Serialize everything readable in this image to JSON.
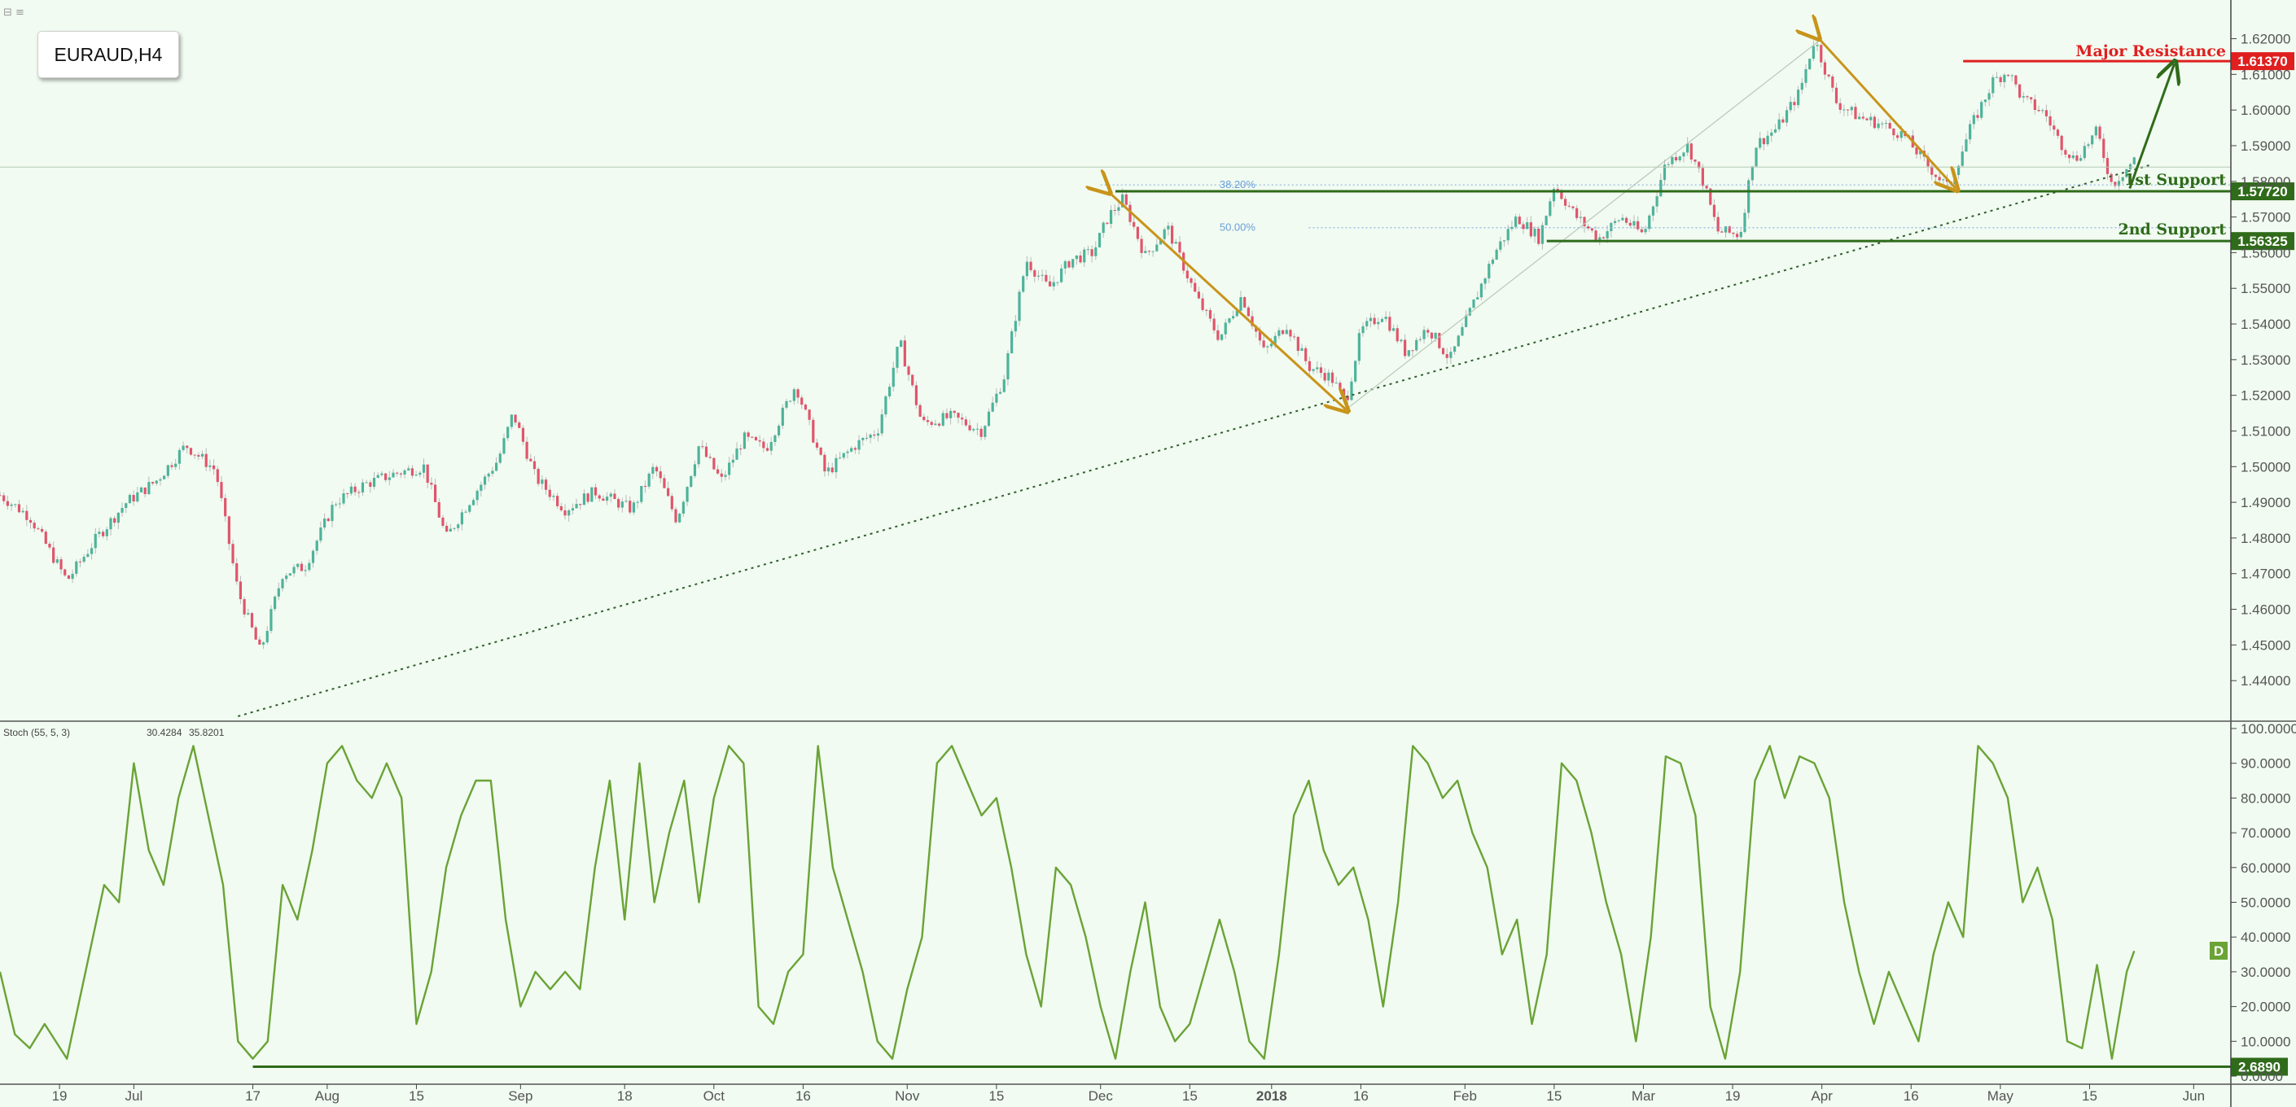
{
  "symbol": "EURAUD,H4",
  "top_icons": "⊟ ≡",
  "chart_data": {
    "type": "candlestick",
    "price_axis": {
      "range": [
        1.43,
        1.624
      ],
      "ticks": [
        "1.62000",
        "1.61000",
        "1.60000",
        "1.59000",
        "1.58000",
        "1.57000",
        "1.56000",
        "1.55000",
        "1.54000",
        "1.53000",
        "1.52000",
        "1.51000",
        "1.50000",
        "1.49000",
        "1.48000",
        "1.47000",
        "1.46000",
        "1.45000",
        "1.44000"
      ]
    },
    "time_axis": {
      "labels": [
        {
          "text": "19",
          "t": 0.04
        },
        {
          "text": "Jul",
          "t": 0.09
        },
        {
          "text": "17",
          "t": 0.17
        },
        {
          "text": "Aug",
          "t": 0.22
        },
        {
          "text": "15",
          "t": 0.28
        },
        {
          "text": "Sep",
          "t": 0.35
        },
        {
          "text": "18",
          "t": 0.42
        },
        {
          "text": "Oct",
          "t": 0.48
        },
        {
          "text": "16",
          "t": 0.54
        },
        {
          "text": "Nov",
          "t": 0.61
        },
        {
          "text": "15",
          "t": 0.67
        },
        {
          "text": "Dec",
          "t": 0.74
        },
        {
          "text": "15",
          "t": 0.8
        },
        {
          "text": "2018",
          "t": 0.855,
          "bold": true
        },
        {
          "text": "16",
          "t": 0.915
        },
        {
          "text": "Feb",
          "t": 0.985
        },
        {
          "text": "15",
          "t": 1.045
        },
        {
          "text": "Mar",
          "t": 1.105
        },
        {
          "text": "19",
          "t": 1.165
        },
        {
          "text": "Apr",
          "t": 1.225
        },
        {
          "text": "16",
          "t": 1.285
        },
        {
          "text": "May",
          "t": 1.345
        },
        {
          "text": "15",
          "t": 1.405
        },
        {
          "text": "Jun",
          "t": 1.475
        }
      ]
    },
    "price_path": [
      [
        0.0,
        1.492
      ],
      [
        0.02,
        1.486
      ],
      [
        0.045,
        1.468
      ],
      [
        0.065,
        1.48
      ],
      [
        0.085,
        1.49
      ],
      [
        0.105,
        1.496
      ],
      [
        0.125,
        1.506
      ],
      [
        0.145,
        1.499
      ],
      [
        0.16,
        1.465
      ],
      [
        0.175,
        1.448
      ],
      [
        0.19,
        1.47
      ],
      [
        0.205,
        1.472
      ],
      [
        0.225,
        1.49
      ],
      [
        0.245,
        1.495
      ],
      [
        0.265,
        1.498
      ],
      [
        0.285,
        1.5
      ],
      [
        0.3,
        1.48
      ],
      [
        0.315,
        1.49
      ],
      [
        0.335,
        1.502
      ],
      [
        0.345,
        1.515
      ],
      [
        0.36,
        1.497
      ],
      [
        0.38,
        1.488
      ],
      [
        0.4,
        1.493
      ],
      [
        0.425,
        1.488
      ],
      [
        0.44,
        1.5
      ],
      [
        0.455,
        1.485
      ],
      [
        0.47,
        1.506
      ],
      [
        0.485,
        1.496
      ],
      [
        0.5,
        1.508
      ],
      [
        0.515,
        1.505
      ],
      [
        0.535,
        1.523
      ],
      [
        0.555,
        1.498
      ],
      [
        0.575,
        1.506
      ],
      [
        0.59,
        1.51
      ],
      [
        0.605,
        1.535
      ],
      [
        0.62,
        1.512
      ],
      [
        0.64,
        1.514
      ],
      [
        0.66,
        1.51
      ],
      [
        0.675,
        1.525
      ],
      [
        0.69,
        1.558
      ],
      [
        0.705,
        1.55
      ],
      [
        0.72,
        1.558
      ],
      [
        0.735,
        1.56
      ],
      [
        0.745,
        1.57
      ],
      [
        0.755,
        1.575
      ],
      [
        0.77,
        1.559
      ],
      [
        0.785,
        1.567
      ],
      [
        0.805,
        1.547
      ],
      [
        0.82,
        1.536
      ],
      [
        0.835,
        1.548
      ],
      [
        0.85,
        1.532
      ],
      [
        0.865,
        1.54
      ],
      [
        0.88,
        1.528
      ],
      [
        0.895,
        1.525
      ],
      [
        0.905,
        1.518
      ],
      [
        0.915,
        1.538
      ],
      [
        0.93,
        1.543
      ],
      [
        0.945,
        1.532
      ],
      [
        0.96,
        1.539
      ],
      [
        0.975,
        1.53
      ],
      [
        0.99,
        1.545
      ],
      [
        1.005,
        1.56
      ],
      [
        1.02,
        1.57
      ],
      [
        1.035,
        1.564
      ],
      [
        1.045,
        1.579
      ],
      [
        1.06,
        1.57
      ],
      [
        1.075,
        1.564
      ],
      [
        1.09,
        1.57
      ],
      [
        1.105,
        1.565
      ],
      [
        1.12,
        1.585
      ],
      [
        1.135,
        1.59
      ],
      [
        1.145,
        1.58
      ],
      [
        1.155,
        1.566
      ],
      [
        1.17,
        1.565
      ],
      [
        1.18,
        1.59
      ],
      [
        1.195,
        1.595
      ],
      [
        1.21,
        1.605
      ],
      [
        1.22,
        1.62
      ],
      [
        1.235,
        1.602
      ],
      [
        1.25,
        1.598
      ],
      [
        1.265,
        1.596
      ],
      [
        1.28,
        1.593
      ],
      [
        1.295,
        1.585
      ],
      [
        1.31,
        1.578
      ],
      [
        1.325,
        1.595
      ],
      [
        1.34,
        1.608
      ],
      [
        1.35,
        1.611
      ],
      [
        1.36,
        1.603
      ],
      [
        1.375,
        1.599
      ],
      [
        1.385,
        1.591
      ],
      [
        1.395,
        1.586
      ],
      [
        1.41,
        1.594
      ],
      [
        1.42,
        1.579
      ],
      [
        1.435,
        1.586
      ]
    ],
    "stochastic": {
      "label": "Stoch (55, 5, 3)",
      "k_value": "30.4284",
      "d_value": "35.8201",
      "range": [
        0,
        100
      ],
      "ticks": [
        "100.0000",
        "90.0000",
        "80.0000",
        "70.0000",
        "60.0000",
        "50.0000",
        "40.0000",
        "30.0000",
        "20.0000",
        "10.0000",
        "0.0000"
      ],
      "level_line": 2.689,
      "level_label": "2.6890",
      "side_badge": "D",
      "values": [
        [
          0.0,
          30
        ],
        [
          0.01,
          12
        ],
        [
          0.02,
          8
        ],
        [
          0.03,
          15
        ],
        [
          0.045,
          5
        ],
        [
          0.06,
          35
        ],
        [
          0.07,
          55
        ],
        [
          0.08,
          50
        ],
        [
          0.09,
          90
        ],
        [
          0.1,
          65
        ],
        [
          0.11,
          55
        ],
        [
          0.12,
          80
        ],
        [
          0.13,
          95
        ],
        [
          0.14,
          75
        ],
        [
          0.15,
          55
        ],
        [
          0.16,
          10
        ],
        [
          0.17,
          5
        ],
        [
          0.18,
          10
        ],
        [
          0.19,
          55
        ],
        [
          0.2,
          45
        ],
        [
          0.21,
          65
        ],
        [
          0.22,
          90
        ],
        [
          0.23,
          95
        ],
        [
          0.24,
          85
        ],
        [
          0.25,
          80
        ],
        [
          0.26,
          90
        ],
        [
          0.27,
          80
        ],
        [
          0.28,
          15
        ],
        [
          0.29,
          30
        ],
        [
          0.3,
          60
        ],
        [
          0.31,
          75
        ],
        [
          0.32,
          85
        ],
        [
          0.33,
          85
        ],
        [
          0.34,
          45
        ],
        [
          0.35,
          20
        ],
        [
          0.36,
          30
        ],
        [
          0.37,
          25
        ],
        [
          0.38,
          30
        ],
        [
          0.39,
          25
        ],
        [
          0.4,
          60
        ],
        [
          0.41,
          85
        ],
        [
          0.42,
          45
        ],
        [
          0.43,
          90
        ],
        [
          0.44,
          50
        ],
        [
          0.45,
          70
        ],
        [
          0.46,
          85
        ],
        [
          0.47,
          50
        ],
        [
          0.48,
          80
        ],
        [
          0.49,
          95
        ],
        [
          0.5,
          90
        ],
        [
          0.51,
          20
        ],
        [
          0.52,
          15
        ],
        [
          0.53,
          30
        ],
        [
          0.54,
          35
        ],
        [
          0.55,
          95
        ],
        [
          0.56,
          60
        ],
        [
          0.57,
          45
        ],
        [
          0.58,
          30
        ],
        [
          0.59,
          10
        ],
        [
          0.6,
          5
        ],
        [
          0.61,
          25
        ],
        [
          0.62,
          40
        ],
        [
          0.63,
          90
        ],
        [
          0.64,
          95
        ],
        [
          0.65,
          85
        ],
        [
          0.66,
          75
        ],
        [
          0.67,
          80
        ],
        [
          0.68,
          60
        ],
        [
          0.69,
          35
        ],
        [
          0.7,
          20
        ],
        [
          0.71,
          60
        ],
        [
          0.72,
          55
        ],
        [
          0.73,
          40
        ],
        [
          0.74,
          20
        ],
        [
          0.75,
          5
        ],
        [
          0.76,
          30
        ],
        [
          0.77,
          50
        ],
        [
          0.78,
          20
        ],
        [
          0.79,
          10
        ],
        [
          0.8,
          15
        ],
        [
          0.81,
          30
        ],
        [
          0.82,
          45
        ],
        [
          0.83,
          30
        ],
        [
          0.84,
          10
        ],
        [
          0.85,
          5
        ],
        [
          0.86,
          35
        ],
        [
          0.87,
          75
        ],
        [
          0.88,
          85
        ],
        [
          0.89,
          65
        ],
        [
          0.9,
          55
        ],
        [
          0.91,
          60
        ],
        [
          0.92,
          45
        ],
        [
          0.93,
          20
        ],
        [
          0.94,
          50
        ],
        [
          0.95,
          95
        ],
        [
          0.96,
          90
        ],
        [
          0.97,
          80
        ],
        [
          0.98,
          85
        ],
        [
          0.99,
          70
        ],
        [
          1.0,
          60
        ],
        [
          1.01,
          35
        ],
        [
          1.02,
          45
        ],
        [
          1.03,
          15
        ],
        [
          1.04,
          35
        ],
        [
          1.05,
          90
        ],
        [
          1.06,
          85
        ],
        [
          1.07,
          70
        ],
        [
          1.08,
          50
        ],
        [
          1.09,
          35
        ],
        [
          1.1,
          10
        ],
        [
          1.11,
          40
        ],
        [
          1.12,
          92
        ],
        [
          1.13,
          90
        ],
        [
          1.14,
          75
        ],
        [
          1.15,
          20
        ],
        [
          1.16,
          5
        ],
        [
          1.17,
          30
        ],
        [
          1.18,
          85
        ],
        [
          1.19,
          95
        ],
        [
          1.2,
          80
        ],
        [
          1.21,
          92
        ],
        [
          1.22,
          90
        ],
        [
          1.23,
          80
        ],
        [
          1.24,
          50
        ],
        [
          1.25,
          30
        ],
        [
          1.26,
          15
        ],
        [
          1.27,
          30
        ],
        [
          1.28,
          20
        ],
        [
          1.29,
          10
        ],
        [
          1.3,
          35
        ],
        [
          1.31,
          50
        ],
        [
          1.32,
          40
        ],
        [
          1.33,
          95
        ],
        [
          1.34,
          90
        ],
        [
          1.35,
          80
        ],
        [
          1.36,
          50
        ],
        [
          1.37,
          60
        ],
        [
          1.38,
          45
        ],
        [
          1.39,
          10
        ],
        [
          1.4,
          8
        ],
        [
          1.41,
          32
        ],
        [
          1.42,
          5
        ],
        [
          1.43,
          30
        ],
        [
          1.435,
          36
        ]
      ]
    },
    "annotations": {
      "major_resistance": {
        "label": "Major Resistance",
        "price": 1.6137,
        "badge": "1.61370"
      },
      "support1": {
        "label": "1st Support",
        "price": 1.5772,
        "badge": "1.57720"
      },
      "support2": {
        "label": "2nd Support",
        "price": 1.56325,
        "badge": "1.56325"
      },
      "fib_382": {
        "label": "38.20%",
        "price": 1.579
      },
      "fib_50": {
        "label": "50.00%",
        "price": 1.567
      },
      "horizontal_ref": 1.584
    },
    "colors": {
      "background": "#f1fbf1",
      "bull": "#4db39a",
      "bear": "#e0556b",
      "support": "#2f6b1a",
      "resistance": "#e01f1f",
      "fib_arrow": "#c8941a",
      "stoch_line": "#6aa336"
    }
  }
}
